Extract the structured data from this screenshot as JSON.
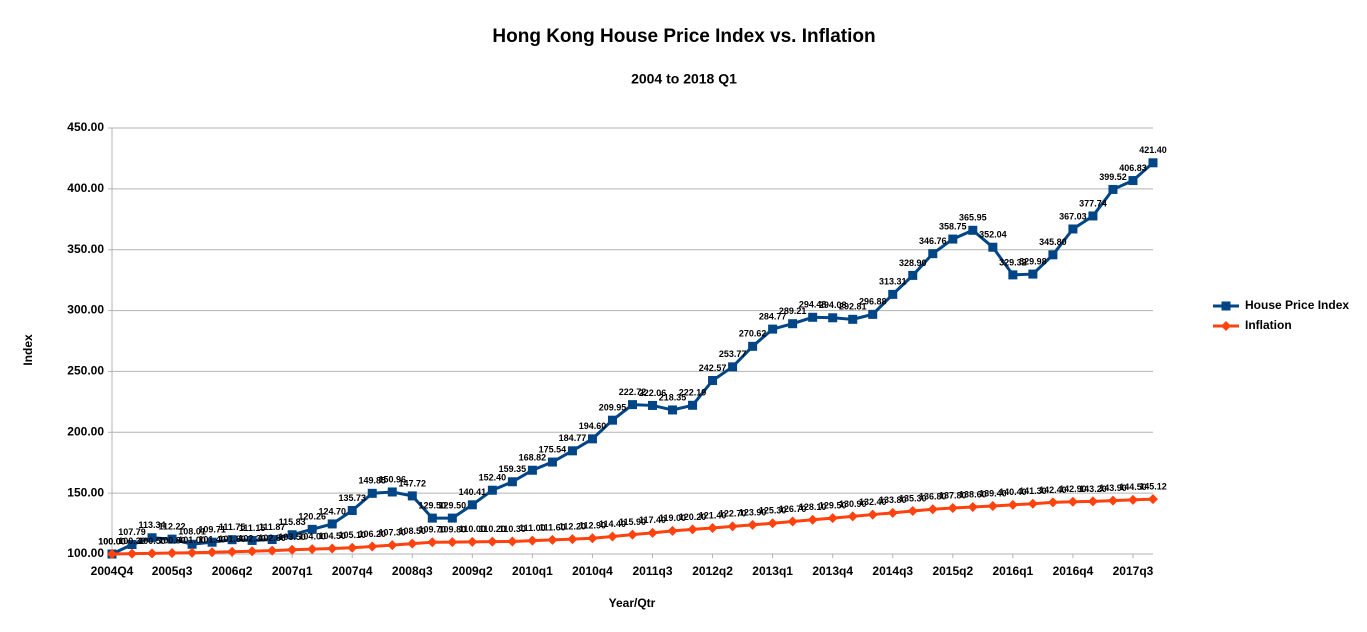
{
  "chart_data": {
    "type": "line",
    "title": "Hong Kong House Price Index vs. Inflation",
    "subtitle": "2004 to 2018 Q1",
    "x_label": "Year/Qtr",
    "y_label": "Index",
    "categories": [
      "2004Q4",
      null,
      null,
      "2005q3",
      null,
      null,
      "2006q2",
      null,
      null,
      "2007q1",
      null,
      null,
      "2007q4",
      null,
      null,
      "2008q3",
      null,
      null,
      "2009q2",
      null,
      null,
      "2010q1",
      null,
      null,
      "2010q4",
      null,
      null,
      "2011q3",
      null,
      null,
      "2012q2",
      null,
      null,
      "2013q1",
      null,
      null,
      "2013q4",
      null,
      null,
      "2014q3",
      null,
      null,
      "2015q2",
      null,
      null,
      "2016q1",
      null,
      null,
      "2016q4",
      null,
      null,
      "2017q3",
      null
    ],
    "series": [
      {
        "name": "House Price Index",
        "color": "#004586",
        "marker": "square",
        "values": [
          100.0,
          107.79,
          113.34,
          112.22,
          108.01,
          109.71,
          111.75,
          111.15,
          111.87,
          115.83,
          120.26,
          124.7,
          135.73,
          149.85,
          150.96,
          147.72,
          129.5,
          129.5,
          140.41,
          152.4,
          159.35,
          168.82,
          175.54,
          184.77,
          194.6,
          209.95,
          222.72,
          222.06,
          218.35,
          222.19,
          242.57,
          253.77,
          270.62,
          284.77,
          289.21,
          294.48,
          294.08,
          292.81,
          296.88,
          313.31,
          328.9,
          346.76,
          358.75,
          365.95,
          352.04,
          329.32,
          329.98,
          345.8,
          367.03,
          377.74,
          399.52,
          406.83,
          421.4
        ],
        "value_labels": [
          "100.00",
          "107.79",
          "113.34",
          "112.22",
          "108.01",
          "109.71",
          "111.75",
          "111.15",
          "111.87",
          "115.83",
          "120.26",
          "124.70",
          "135.73",
          "149.85",
          "150.96",
          "147.72",
          "129.50",
          "129.50",
          "140.41",
          "152.40",
          "159.35",
          "168.82",
          "175.54",
          "184.77",
          "194.60",
          "209.95",
          "222.72",
          "222.06",
          "218.35",
          "222.19",
          "242.57",
          "253.77",
          "270.62",
          "284.77",
          "289.21",
          "294.48",
          "294.08",
          "292.81",
          "296.88",
          "313.31",
          "328.90",
          "346.76",
          "358.75",
          "365.95",
          "352.04",
          "329.32",
          "329.98",
          "345.80",
          "367.03",
          "377.74",
          "399.52",
          "406.83",
          "421.40"
        ]
      },
      {
        "name": "Inflation",
        "color": "#ff420e",
        "marker": "diamond",
        "values": [
          100.0,
          100.3,
          100.5,
          100.8,
          101.0,
          101.4,
          101.8,
          102.3,
          102.8,
          103.5,
          104.0,
          104.5,
          105.1,
          106.2,
          107.3,
          108.5,
          109.7,
          109.8,
          110.0,
          110.2,
          110.3,
          111.0,
          111.6,
          112.2,
          112.9,
          114.4,
          115.9,
          117.4,
          119.0,
          120.2,
          121.4,
          122.7,
          123.9,
          125.3,
          126.7,
          128.1,
          129.5,
          130.9,
          132.4,
          133.8,
          135.3,
          136.8,
          137.8,
          138.6,
          139.4,
          140.4,
          141.3,
          142.4,
          142.9,
          143.2,
          143.9,
          144.5,
          145.12
        ],
        "value_labels": [
          "100.00",
          "100.30",
          "100.50",
          "100.80",
          "101.00",
          "101.40",
          "101.80",
          "102.30",
          "102.80",
          "103.50",
          "104.00",
          "104.50",
          "105.10",
          "106.20",
          "107.30",
          "108.50",
          "109.70",
          "109.80",
          "110.00",
          "110.20",
          "110.30",
          "111.00",
          "111.60",
          "112.20",
          "112.90",
          "114.40",
          "115.90",
          "117.40",
          "119.00",
          "120.20",
          "121.40",
          "122.70",
          "123.90",
          "125.30",
          "126.70",
          "128.10",
          "129.50",
          "130.90",
          "132.40",
          "133.80",
          "135.30",
          "136.80",
          "137.80",
          "138.60",
          "139.40",
          "140.40",
          "141.30",
          "142.40",
          "142.90",
          "143.20",
          "143.90",
          "144.50",
          "145.12"
        ]
      }
    ],
    "ylim": [
      100,
      450
    ],
    "yticks": [
      {
        "value": 100,
        "label": "100.00"
      },
      {
        "value": 150,
        "label": "150.00"
      },
      {
        "value": 200,
        "label": "200.00"
      },
      {
        "value": 250,
        "label": "250.00"
      },
      {
        "value": 300,
        "label": "300.00"
      },
      {
        "value": 350,
        "label": "350.00"
      },
      {
        "value": 400,
        "label": "400.00"
      },
      {
        "value": 450,
        "label": "450.00"
      }
    ],
    "grid": true,
    "legend": "right"
  }
}
